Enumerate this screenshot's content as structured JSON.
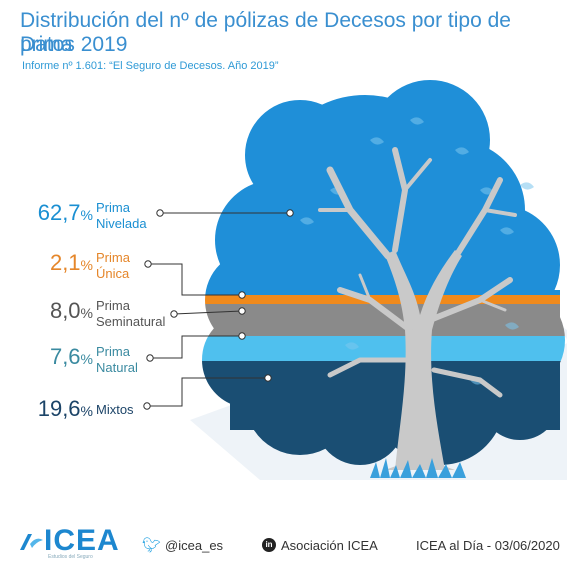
{
  "header": {
    "title_line1": "Distribución del nº de pólizas de Decesos por tipo de prima",
    "title_line2": "Datos 2019",
    "subtitle": "Informe nº 1.601: “El Seguro de Decesos. Año 2019”"
  },
  "chart_data": {
    "type": "stacked-area-infographic",
    "title": "Distribución del nº de pólizas de Decesos por tipo de prima",
    "subtitle": "Datos 2019",
    "unit": "%",
    "series": [
      {
        "name": "Prima Nivelada",
        "value": 62.7,
        "value_label": "62,7",
        "label_lines": [
          "Prima",
          "Nivelada"
        ],
        "color": "#1f8fd8",
        "text_color": "#1a8fd2"
      },
      {
        "name": "Prima Única",
        "value": 2.1,
        "value_label": "2,1",
        "label_lines": [
          "Prima",
          "Única"
        ],
        "color": "#f08a1c",
        "text_color": "#e5862a"
      },
      {
        "name": "Prima Seminatural",
        "value": 8.0,
        "value_label": "8,0",
        "label_lines": [
          "Prima",
          "Seminatural"
        ],
        "color": "#8a8a8a",
        "text_color": "#555555"
      },
      {
        "name": "Prima Natural",
        "value": 7.6,
        "value_label": "7,6",
        "label_lines": [
          "Prima",
          "Natural"
        ],
        "color": "#4fc0ee",
        "text_color": "#3a8aa0"
      },
      {
        "name": "Mixtos",
        "value": 19.6,
        "value_label": "19,6",
        "label_lines": [
          "Mixtos"
        ],
        "color": "#1a4e73",
        "text_color": "#1c4468"
      }
    ]
  },
  "footer": {
    "logo": "ICEA",
    "logo_tagline": "Estudios del Seguro",
    "twitter_icon": "twitter-bird-icon",
    "twitter": "@icea_es",
    "linkedin_icon": "linkedin-icon",
    "linkedin_badge": "in",
    "linkedin": "Asociación ICEA",
    "date": "ICEA al Día - 03/06/2020"
  }
}
